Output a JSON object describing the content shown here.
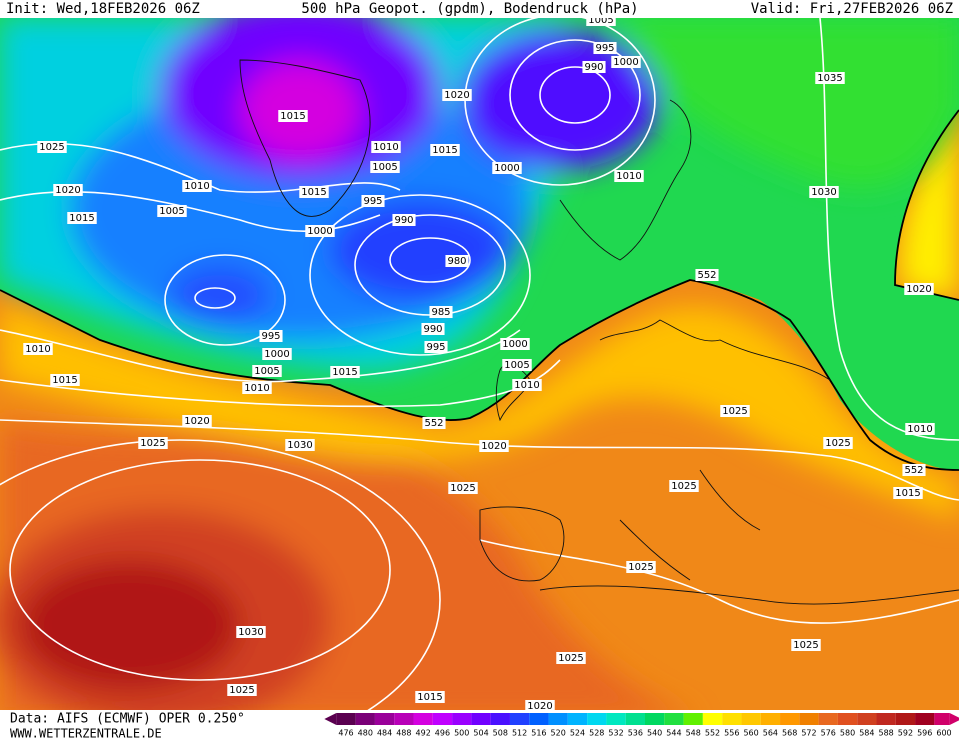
{
  "header": {
    "init": "Init: Wed,18FEB2026 06Z",
    "title": "500 hPa Geopot. (gpdm), Bodendruck (hPa)",
    "valid": "Valid: Fri,27FEB2026 06Z"
  },
  "isobar_labels": [
    "1005",
    "995",
    "1000",
    "990",
    "1035",
    "1020",
    "1015",
    "1025",
    "1010",
    "1015",
    "1005",
    "1000",
    "1010",
    "1020",
    "1010",
    "1015",
    "1030",
    "995",
    "1005",
    "990",
    "1015",
    "1000",
    "980",
    "552",
    "1020",
    "985",
    "995",
    "990",
    "995",
    "1000",
    "1010",
    "1000",
    "1005",
    "1005",
    "1015",
    "1015",
    "1010",
    "1010",
    "1025",
    "552",
    "1020",
    "1010",
    "1025",
    "1025",
    "1030",
    "1020",
    "552",
    "1025",
    "1025",
    "1015",
    "1025",
    "1030",
    "1025",
    "1025",
    "1025",
    "1015",
    "1020"
  ],
  "footer": {
    "source": "Data: AIFS (ECMWF) OPER 0.250°",
    "website": "WWW.WETTERZENTRALE.DE"
  },
  "colorbar": {
    "ticks": [
      476,
      480,
      484,
      488,
      492,
      496,
      500,
      504,
      508,
      512,
      516,
      520,
      524,
      528,
      532,
      536,
      540,
      544,
      548,
      552,
      556,
      560,
      564,
      568,
      572,
      576,
      580,
      584,
      588,
      592,
      596,
      600
    ],
    "colors": [
      "#5a0050",
      "#7a0078",
      "#9a009a",
      "#b800b8",
      "#d400e0",
      "#c000ff",
      "#9a00ff",
      "#7000ff",
      "#4a10ff",
      "#2040ff",
      "#0060ff",
      "#0090ff",
      "#00b4ff",
      "#00d8f0",
      "#00e8c0",
      "#00e090",
      "#00d860",
      "#20e040",
      "#60f000",
      "#ffff00",
      "#ffe000",
      "#ffc800",
      "#ffb000",
      "#ff9800",
      "#f08000",
      "#e86820",
      "#e05020",
      "#d04020",
      "#c02820",
      "#b01818",
      "#a00020",
      "#d0006a"
    ]
  }
}
